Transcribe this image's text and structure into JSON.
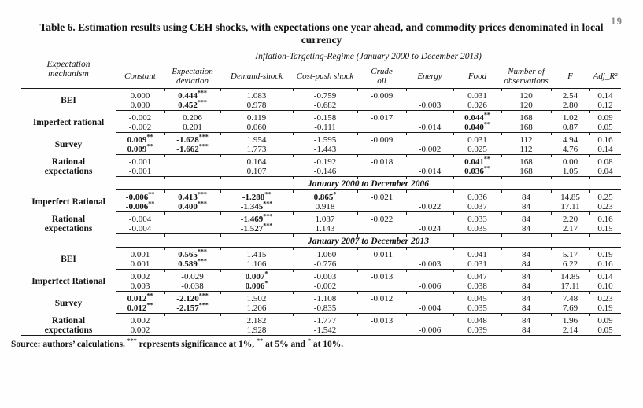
{
  "page": {
    "number": "19"
  },
  "title": "Table 6. Estimation results using CEH shocks, with expectations one year ahead, and commodity prices denominated in local currency",
  "table": {
    "row_header": "Expectation mechanism",
    "regime_header": "Inflation-Targeting-Regime (January 2000 to December 2013)",
    "columns": [
      "Constant",
      "Expectation deviation",
      "Demand-shock",
      "Cost-push shock",
      "Crude oil",
      "Energy",
      "Food",
      "Number of observations",
      "F",
      "Adj_R²"
    ],
    "sections": [
      {
        "label": "",
        "groups": [
          {
            "mechanism": "BEI",
            "rows": [
              [
                "0.000",
                "0.444***",
                "1.083",
                "-0.759",
                "-0.009",
                "",
                "0.031",
                "120",
                "2.54",
                "0.14"
              ],
              [
                "0.000",
                "0.452***",
                "0.978",
                "-0.682",
                "",
                "-0.003",
                "0.026",
                "120",
                "2.80",
                "0.12"
              ]
            ]
          },
          {
            "mechanism": "Imperfect rational",
            "rows": [
              [
                "-0.002",
                "0.206",
                "0.119",
                "-0.158",
                "-0.017",
                "",
                "0.044**",
                "168",
                "1.02",
                "0.09"
              ],
              [
                "-0.002",
                "0.201",
                "0.060",
                "-0.111",
                "",
                "-0.014",
                "0.040**",
                "168",
                "0.87",
                "0.05"
              ]
            ]
          },
          {
            "mechanism": "Survey",
            "rows": [
              [
                "0.009**",
                "-1.628***",
                "1.954",
                "-1.595",
                "-0.009",
                "",
                "0.031",
                "112",
                "4.94",
                "0.16"
              ],
              [
                "0.009**",
                "-1.662***",
                "1.773",
                "-1.443",
                "",
                "-0.002",
                "0.025",
                "112",
                "4.76",
                "0.14"
              ]
            ]
          },
          {
            "mechanism": "Rational expectations",
            "rows": [
              [
                "-0.001",
                "",
                "0.164",
                "-0.192",
                "-0.018",
                "",
                "0.041**",
                "168",
                "0.00",
                "0.08"
              ],
              [
                "-0.001",
                "",
                "0.107",
                "-0.146",
                "",
                "-0.014",
                "0.036**",
                "168",
                "1.05",
                "0.04"
              ]
            ]
          }
        ]
      },
      {
        "label": "January 2000 to December 2006",
        "groups": [
          {
            "mechanism": "Imperfect Rational",
            "rows": [
              [
                "-0.006**",
                "0.413***",
                "-1.288**",
                "0.865*",
                "-0.021",
                "",
                "0.036",
                "84",
                "14.85",
                "0.25"
              ],
              [
                "-0.006**",
                "0.400***",
                "-1.345***",
                "0.918",
                "",
                "-0.022",
                "0.037",
                "84",
                "17.11",
                "0.23"
              ]
            ]
          },
          {
            "mechanism": "Rational expectations",
            "rows": [
              [
                "-0.004",
                "",
                "-1.469***",
                "1.087",
                "-0.022",
                "",
                "0.033",
                "84",
                "2.20",
                "0.16"
              ],
              [
                "-0.004",
                "",
                "-1.527***",
                "1.143",
                "",
                "-0.024",
                "0.035",
                "84",
                "2.17",
                "0.15"
              ]
            ]
          }
        ]
      },
      {
        "label": "January 2007 to December 2013",
        "groups": [
          {
            "mechanism": "BEI",
            "rows": [
              [
                "0.001",
                "0.565***",
                "1.415",
                "-1.060",
                "-0.011",
                "",
                "0.041",
                "84",
                "5.17",
                "0.19"
              ],
              [
                "0.001",
                "0.589***",
                "1.106",
                "-0.776",
                "",
                "-0.003",
                "0.031",
                "84",
                "6.22",
                "0.16"
              ]
            ]
          },
          {
            "mechanism": "Imperfect Rational",
            "rows": [
              [
                "0.002",
                "-0.029",
                "0.007*",
                "-0.003",
                "-0.013",
                "",
                "0.047",
                "84",
                "14.85",
                "0.14"
              ],
              [
                "0.003",
                "-0.038",
                "0.006*",
                "-0.002",
                "",
                "-0.006",
                "0.038",
                "84",
                "17.11",
                "0.10"
              ]
            ]
          },
          {
            "mechanism": "Survey",
            "rows": [
              [
                "0.012**",
                "-2.120***",
                "1.502",
                "-1.108",
                "-0.012",
                "",
                "0.045",
                "84",
                "7.48",
                "0.23"
              ],
              [
                "0.012**",
                "-2.157***",
                "1.206",
                "-0.835",
                "",
                "-0.004",
                "0.035",
                "84",
                "7.69",
                "0.19"
              ]
            ]
          },
          {
            "mechanism": "Rational expectations",
            "rows": [
              [
                "0.002",
                "",
                "2.182",
                "-1.777",
                "-0.013",
                "",
                "0.048",
                "84",
                "1.96",
                "0.09"
              ],
              [
                "0.002",
                "",
                "1.928",
                "-1.542",
                "",
                "-0.006",
                "0.039",
                "84",
                "2.14",
                "0.05"
              ]
            ]
          }
        ]
      }
    ]
  },
  "footnote": {
    "segments": [
      {
        "t": "Source: authors’ calculations. "
      },
      {
        "s": "***"
      },
      {
        "t": " represents significance at 1%, "
      },
      {
        "s": "**"
      },
      {
        "t": " at 5% and "
      },
      {
        "s": "*"
      },
      {
        "t": " at 10%."
      }
    ]
  }
}
